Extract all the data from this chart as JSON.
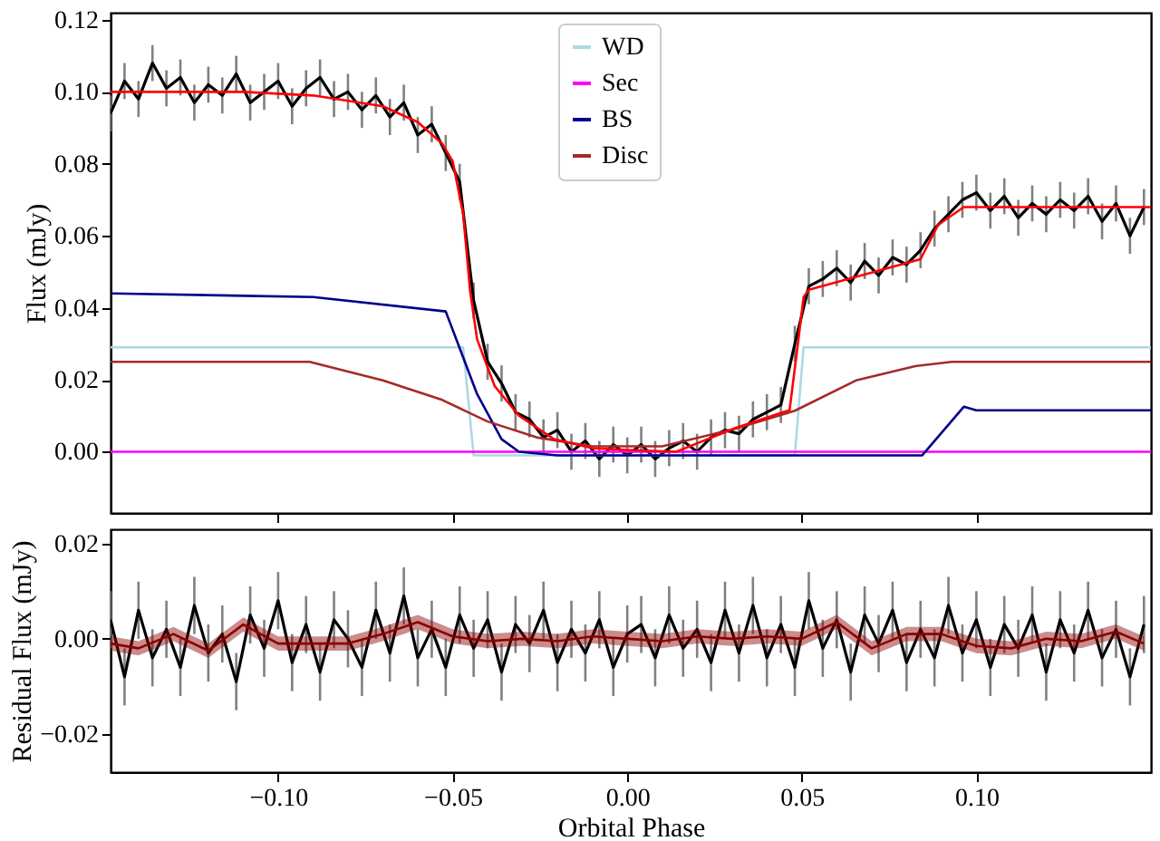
{
  "chart_data": [
    {
      "type": "line",
      "ylabel": "Flux (mJy)",
      "xlim": [
        -0.148,
        0.15
      ],
      "ylim": [
        -0.017,
        0.122
      ],
      "tick_labels": "y",
      "legend": "top",
      "xticks": [
        {
          "value": -0.1,
          "label": null
        },
        {
          "value": -0.05,
          "label": null
        },
        {
          "value": 0,
          "label": null
        },
        {
          "value": 0.05,
          "label": null
        },
        {
          "value": 0.1,
          "label": null
        }
      ],
      "yticks": [
        {
          "value": 0,
          "label": "0.00"
        },
        {
          "value": 0.02,
          "label": "0.02"
        },
        {
          "value": 0.04,
          "label": "0.04"
        },
        {
          "value": 0.06,
          "label": "0.06"
        },
        {
          "value": 0.08,
          "label": "0.08"
        },
        {
          "value": 0.1,
          "label": "0.10"
        },
        {
          "value": 0.12,
          "label": "0.12"
        }
      ],
      "series": [
        {
          "color": "#000000",
          "x": [
            -0.148,
            -0.144,
            -0.14,
            -0.136,
            -0.132,
            -0.128,
            -0.124,
            -0.12,
            -0.116,
            -0.112,
            -0.108,
            -0.104,
            -0.1,
            -0.096,
            -0.092,
            -0.088,
            -0.084,
            -0.08,
            -0.076,
            -0.072,
            -0.068,
            -0.064,
            -0.06,
            -0.056,
            -0.052,
            -0.048,
            -0.044,
            -0.04,
            -0.036,
            -0.032,
            -0.028,
            -0.024,
            -0.02,
            -0.016,
            -0.012,
            -0.008,
            -0.004,
            0,
            0.004,
            0.008,
            0.012,
            0.016,
            0.02,
            0.024,
            0.028,
            0.032,
            0.036,
            0.04,
            0.044,
            0.048,
            0.052,
            0.056,
            0.06,
            0.064,
            0.068,
            0.072,
            0.076,
            0.08,
            0.084,
            0.088,
            0.092,
            0.096,
            0.1,
            0.104,
            0.108,
            0.112,
            0.116,
            0.12,
            0.124,
            0.128,
            0.132,
            0.136,
            0.14,
            0.144,
            0.148
          ],
          "values": [
            0.094,
            0.103,
            0.098,
            0.108,
            0.101,
            0.104,
            0.097,
            0.102,
            0.099,
            0.105,
            0.097,
            0.1,
            0.103,
            0.096,
            0.101,
            0.104,
            0.098,
            0.1,
            0.095,
            0.099,
            0.093,
            0.097,
            0.088,
            0.091,
            0.083,
            0.075,
            0.042,
            0.025,
            0.019,
            0.011,
            0.009,
            0.004,
            0.006,
            0.0,
            0.003,
            -0.002,
            0.002,
            -0.001,
            0.002,
            -0.002,
            0.001,
            0.003,
            0.0,
            0.004,
            0.006,
            0.005,
            0.009,
            0.011,
            0.013,
            0.03,
            0.046,
            0.048,
            0.051,
            0.047,
            0.053,
            0.049,
            0.054,
            0.052,
            0.056,
            0.062,
            0.066,
            0.07,
            0.072,
            0.067,
            0.071,
            0.065,
            0.069,
            0.066,
            0.07,
            0.067,
            0.071,
            0.064,
            0.069,
            0.06,
            0.068
          ],
          "errors": [
            0.005,
            0.005,
            0.005,
            0.005,
            0.005,
            0.005,
            0.005,
            0.005,
            0.005,
            0.005,
            0.005,
            0.005,
            0.005,
            0.005,
            0.005,
            0.005,
            0.005,
            0.005,
            0.005,
            0.005,
            0.005,
            0.005,
            0.005,
            0.005,
            0.005,
            0.005,
            0.005,
            0.005,
            0.005,
            0.005,
            0.005,
            0.005,
            0.005,
            0.005,
            0.005,
            0.005,
            0.005,
            0.005,
            0.005,
            0.005,
            0.005,
            0.005,
            0.005,
            0.005,
            0.005,
            0.005,
            0.005,
            0.005,
            0.005,
            0.005,
            0.005,
            0.005,
            0.005,
            0.005,
            0.005,
            0.005,
            0.005,
            0.005,
            0.005,
            0.005,
            0.005,
            0.005,
            0.005,
            0.005,
            0.005,
            0.005,
            0.005,
            0.005,
            0.005,
            0.005,
            0.005,
            0.005,
            0.005,
            0.005,
            0.005
          ]
        },
        {
          "name": "WD",
          "color": "#add8e6",
          "x": [
            -0.148,
            -0.047,
            -0.044,
            0.048,
            0.0505,
            0.15
          ],
          "values": [
            0.029,
            0.029,
            -0.001,
            -0.001,
            0.029,
            0.029
          ]
        },
        {
          "name": "Sec",
          "color": "#ff00ff",
          "x": [
            -0.148,
            0.15
          ],
          "values": [
            0.0,
            0.0
          ]
        },
        {
          "name": "BS",
          "color": "#00008b",
          "x": [
            -0.148,
            -0.09,
            -0.052,
            -0.043,
            -0.036,
            -0.031,
            -0.02,
            0.0845,
            0.0964,
            0.1,
            0.15
          ],
          "values": [
            0.044,
            0.043,
            0.039,
            0.016,
            0.0035,
            0.0,
            -0.001,
            -0.001,
            0.0125,
            0.0115,
            0.0115
          ]
        },
        {
          "name": "Disc",
          "color": "#a52a2a",
          "x": [
            -0.148,
            -0.091,
            -0.07,
            -0.053,
            -0.04,
            -0.026,
            -0.01,
            0.01,
            0.031,
            0.048,
            0.0655,
            0.0825,
            0.093,
            0.15
          ],
          "values": [
            0.025,
            0.025,
            0.0198,
            0.0144,
            0.0084,
            0.004,
            0.0015,
            0.0015,
            0.0064,
            0.0114,
            0.0198,
            0.0238,
            0.025,
            0.025
          ]
        },
        {
          "color": "#ff0000",
          "x": [
            -0.148,
            -0.11,
            -0.09,
            -0.07,
            -0.06,
            -0.053,
            -0.05,
            -0.047,
            -0.045,
            -0.043,
            -0.038,
            -0.031,
            -0.021,
            -0.01,
            0.0,
            0.014,
            0.031,
            0.0465,
            0.049,
            0.0505,
            0.052,
            0.084,
            0.089,
            0.0964,
            0.15
          ],
          "values": [
            0.1,
            0.1,
            0.099,
            0.096,
            0.0916,
            0.0856,
            0.0807,
            0.066,
            0.0446,
            0.0312,
            0.0183,
            0.01,
            0.0035,
            0.001,
            0.0005,
            0.0,
            0.0066,
            0.0116,
            0.031,
            0.043,
            0.045,
            0.0535,
            0.063,
            0.068,
            0.068
          ]
        }
      ]
    },
    {
      "type": "line",
      "xlabel": "Orbital Phase",
      "ylabel": "Residual Flux (mJy)",
      "xlim": [
        -0.148,
        0.15
      ],
      "ylim": [
        -0.028,
        0.023
      ],
      "xticks": [
        {
          "value": -0.1,
          "label": "−0.10"
        },
        {
          "value": -0.05,
          "label": "−0.05"
        },
        {
          "value": 0,
          "label": "0.00"
        },
        {
          "value": 0.05,
          "label": "0.05"
        },
        {
          "value": 0.1,
          "label": "0.10"
        }
      ],
      "yticks": [
        {
          "value": -0.02,
          "label": "−0.02"
        },
        {
          "value": 0,
          "label": "0.00"
        },
        {
          "value": 0.02,
          "label": "0.02"
        }
      ],
      "series": [
        {
          "color": "#000000",
          "x": [
            -0.148,
            -0.144,
            -0.14,
            -0.136,
            -0.132,
            -0.128,
            -0.124,
            -0.12,
            -0.116,
            -0.112,
            -0.108,
            -0.104,
            -0.1,
            -0.096,
            -0.092,
            -0.088,
            -0.084,
            -0.08,
            -0.076,
            -0.072,
            -0.068,
            -0.064,
            -0.06,
            -0.056,
            -0.052,
            -0.048,
            -0.044,
            -0.04,
            -0.036,
            -0.032,
            -0.028,
            -0.024,
            -0.02,
            -0.016,
            -0.012,
            -0.008,
            -0.004,
            0,
            0.004,
            0.008,
            0.012,
            0.016,
            0.02,
            0.024,
            0.028,
            0.032,
            0.036,
            0.04,
            0.044,
            0.048,
            0.052,
            0.056,
            0.06,
            0.064,
            0.068,
            0.072,
            0.076,
            0.08,
            0.084,
            0.088,
            0.092,
            0.096,
            0.1,
            0.104,
            0.108,
            0.112,
            0.116,
            0.12,
            0.124,
            0.128,
            0.132,
            0.136,
            0.14,
            0.144,
            0.148
          ],
          "values": [
            0.004,
            -0.008,
            0.006,
            -0.004,
            0.002,
            -0.006,
            0.007,
            -0.003,
            0.001,
            -0.009,
            0.005,
            -0.002,
            0.008,
            -0.005,
            0.003,
            -0.007,
            0.004,
            0.0,
            -0.006,
            0.006,
            -0.003,
            0.009,
            -0.004,
            0.002,
            -0.006,
            0.005,
            -0.002,
            0.004,
            -0.007,
            0.003,
            -0.001,
            0.006,
            -0.005,
            0.002,
            -0.003,
            0.004,
            -0.006,
            0.001,
            0.003,
            -0.004,
            0.005,
            -0.002,
            0.002,
            -0.005,
            0.006,
            -0.003,
            0.007,
            -0.004,
            0.003,
            -0.006,
            0.008,
            -0.002,
            0.004,
            -0.007,
            0.005,
            -0.001,
            0.006,
            -0.005,
            0.002,
            -0.004,
            0.007,
            -0.003,
            0.004,
            -0.006,
            0.003,
            -0.002,
            0.005,
            -0.007,
            0.004,
            -0.003,
            0.006,
            -0.004,
            0.002,
            -0.008,
            0.003
          ],
          "errors": [
            0.006,
            0.006,
            0.006,
            0.006,
            0.006,
            0.006,
            0.006,
            0.006,
            0.006,
            0.006,
            0.006,
            0.006,
            0.006,
            0.006,
            0.006,
            0.006,
            0.006,
            0.006,
            0.006,
            0.006,
            0.006,
            0.006,
            0.006,
            0.006,
            0.006,
            0.006,
            0.006,
            0.006,
            0.006,
            0.006,
            0.006,
            0.006,
            0.006,
            0.006,
            0.006,
            0.006,
            0.006,
            0.006,
            0.006,
            0.006,
            0.006,
            0.006,
            0.006,
            0.006,
            0.006,
            0.006,
            0.006,
            0.006,
            0.006,
            0.006,
            0.006,
            0.006,
            0.006,
            0.006,
            0.006,
            0.006,
            0.006,
            0.006,
            0.006,
            0.006,
            0.006,
            0.006,
            0.006,
            0.006,
            0.006,
            0.006,
            0.006,
            0.006,
            0.006,
            0.006,
            0.006,
            0.006,
            0.006,
            0.006,
            0.006
          ]
        },
        {
          "color": "#8b0000",
          "x": [
            -0.148,
            -0.14,
            -0.13,
            -0.12,
            -0.11,
            -0.1,
            -0.09,
            -0.08,
            -0.07,
            -0.06,
            -0.05,
            -0.04,
            -0.03,
            -0.02,
            -0.01,
            0.0,
            0.01,
            0.02,
            0.03,
            0.04,
            0.05,
            0.06,
            0.07,
            0.08,
            0.09,
            0.1,
            0.11,
            0.12,
            0.13,
            0.14,
            0.148
          ],
          "values": [
            -0.001,
            -0.002,
            0.001,
            -0.0025,
            0.003,
            -0.001,
            -0.001,
            -0.001,
            0.001,
            0.0035,
            0.0005,
            -0.0005,
            0.0,
            -0.0005,
            0.0005,
            0.0,
            -0.0005,
            0.0005,
            0.0,
            0.0005,
            0.0,
            0.0035,
            -0.002,
            0.001,
            0.001,
            -0.0015,
            -0.002,
            0.0,
            -0.0005,
            0.0015,
            -0.001
          ],
          "lower": [
            -0.0025,
            -0.0035,
            -0.0005,
            -0.004,
            0.0015,
            -0.0025,
            -0.0025,
            -0.0025,
            -0.0005,
            0.002,
            -0.001,
            -0.002,
            -0.0015,
            -0.002,
            -0.001,
            -0.0015,
            -0.002,
            -0.001,
            -0.0015,
            -0.001,
            -0.0015,
            0.002,
            -0.0035,
            -0.0005,
            -0.0005,
            -0.003,
            -0.0035,
            -0.0015,
            -0.002,
            0.0,
            -0.0025
          ],
          "upper": [
            0.0005,
            -0.0005,
            0.0025,
            -0.001,
            0.0045,
            0.0005,
            0.0005,
            0.0005,
            0.0025,
            0.005,
            0.002,
            0.001,
            0.0015,
            0.001,
            0.002,
            0.0015,
            0.001,
            0.002,
            0.0015,
            0.002,
            0.0015,
            0.005,
            -0.0005,
            0.0025,
            0.0025,
            0.0,
            -0.0005,
            0.0015,
            0.001,
            0.003,
            0.0005
          ]
        }
      ]
    }
  ]
}
